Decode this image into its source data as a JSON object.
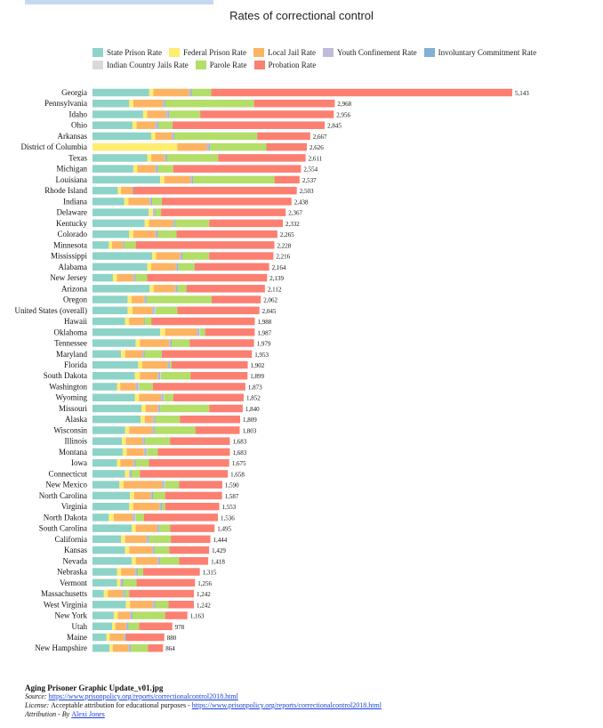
{
  "chart_data": {
    "type": "bar",
    "orientation": "horizontal",
    "stacked": true,
    "title": "Rates of correctional control",
    "legend_position": "top",
    "grid": false,
    "series": [
      {
        "name": "State Prison Rate",
        "color": "#8ed3c7"
      },
      {
        "name": "Federal Prison Rate",
        "color": "#ffed6f"
      },
      {
        "name": "Local Jail Rate",
        "color": "#fdb462"
      },
      {
        "name": "Youth Confinement Rate",
        "color": "#bebada"
      },
      {
        "name": "Involuntary Commitment Rate",
        "color": "#80b1d3"
      },
      {
        "name": "Indian Country Jails Rate",
        "color": "#d9d9d9"
      },
      {
        "name": "Parole Rate",
        "color": "#b3de69"
      },
      {
        "name": "Probation Rate",
        "color": "#fb8072"
      }
    ],
    "rows": [
      {
        "label": "Georgia",
        "total": 5143,
        "values": [
          695,
          50,
          440,
          20,
          10,
          0,
          240,
          3688
        ]
      },
      {
        "label": "Pennsylvania",
        "total": 2968,
        "values": [
          450,
          50,
          360,
          20,
          10,
          0,
          1090,
          988
        ]
      },
      {
        "label": "Idaho",
        "total": 2956,
        "values": [
          620,
          50,
          230,
          30,
          10,
          0,
          380,
          1636
        ]
      },
      {
        "label": "Ohio",
        "total": 2845,
        "values": [
          490,
          50,
          230,
          30,
          10,
          0,
          170,
          1865
        ]
      },
      {
        "label": "Arkansas",
        "total": 2667,
        "values": [
          720,
          50,
          200,
          20,
          10,
          0,
          1020,
          647
        ]
      },
      {
        "label": "District of Columbia",
        "total": 2626,
        "values": [
          0,
          1040,
          360,
          30,
          10,
          0,
          690,
          496
        ]
      },
      {
        "label": "Texas",
        "total": 2611,
        "values": [
          670,
          50,
          160,
          20,
          10,
          0,
          630,
          1071
        ]
      },
      {
        "label": "Michigan",
        "total": 2554,
        "values": [
          500,
          50,
          220,
          20,
          10,
          0,
          190,
          1564
        ]
      },
      {
        "label": "Louisiana",
        "total": 2537,
        "values": [
          830,
          50,
          320,
          20,
          10,
          0,
          1000,
          307
        ]
      },
      {
        "label": "Rhode Island",
        "total": 2503,
        "values": [
          310,
          40,
          140,
          0,
          10,
          0,
          0,
          2003
        ]
      },
      {
        "label": "Indiana",
        "total": 2438,
        "values": [
          390,
          50,
          260,
          20,
          10,
          0,
          120,
          1588
        ]
      },
      {
        "label": "Delaware",
        "total": 2367,
        "values": [
          690,
          50,
          0,
          20,
          10,
          0,
          70,
          1527
        ]
      },
      {
        "label": "Kentucky",
        "total": 2332,
        "values": [
          640,
          50,
          290,
          20,
          10,
          0,
          420,
          902
        ]
      },
      {
        "label": "Colorado",
        "total": 2265,
        "values": [
          450,
          50,
          270,
          20,
          10,
          0,
          230,
          1235
        ]
      },
      {
        "label": "Minnesota",
        "total": 2228,
        "values": [
          200,
          40,
          130,
          10,
          10,
          0,
          140,
          1698
        ]
      },
      {
        "label": "Mississippi",
        "total": 2216,
        "values": [
          730,
          50,
          290,
          20,
          10,
          0,
          330,
          786
        ]
      },
      {
        "label": "Alabama",
        "total": 2164,
        "values": [
          670,
          50,
          300,
          20,
          10,
          0,
          200,
          914
        ]
      },
      {
        "label": "New Jersey",
        "total": 2139,
        "values": [
          250,
          50,
          200,
          20,
          10,
          0,
          140,
          1469
        ]
      },
      {
        "label": "Arizona",
        "total": 2112,
        "values": [
          700,
          50,
          260,
          20,
          10,
          0,
          110,
          962
        ]
      },
      {
        "label": "Oregon",
        "total": 2062,
        "values": [
          430,
          50,
          150,
          20,
          10,
          0,
          800,
          602
        ]
      },
      {
        "label": "United States (overall)",
        "total": 2045,
        "values": [
          430,
          60,
          240,
          20,
          10,
          10,
          270,
          1005
        ]
      },
      {
        "label": "Hawaii",
        "total": 1988,
        "values": [
          400,
          50,
          180,
          0,
          10,
          0,
          80,
          1268
        ]
      },
      {
        "label": "Oklahoma",
        "total": 1987,
        "values": [
          830,
          60,
          390,
          20,
          10,
          10,
          60,
          607
        ]
      },
      {
        "label": "Tennessee",
        "total": 1979,
        "values": [
          530,
          50,
          360,
          20,
          10,
          0,
          220,
          789
        ]
      },
      {
        "label": "Maryland",
        "total": 1953,
        "values": [
          350,
          50,
          210,
          20,
          10,
          0,
          210,
          1103
        ]
      },
      {
        "label": "Florida",
        "total": 1902,
        "values": [
          560,
          50,
          310,
          20,
          10,
          0,
          20,
          932
        ]
      },
      {
        "label": "South Dakota",
        "total": 1899,
        "values": [
          520,
          60,
          220,
          20,
          10,
          10,
          360,
          699
        ]
      },
      {
        "label": "Washington",
        "total": 1873,
        "values": [
          300,
          40,
          190,
          20,
          10,
          10,
          170,
          1133
        ]
      },
      {
        "label": "Wyoming",
        "total": 1852,
        "values": [
          520,
          50,
          270,
          20,
          10,
          10,
          110,
          862
        ]
      },
      {
        "label": "Missouri",
        "total": 1840,
        "values": [
          600,
          50,
          150,
          20,
          10,
          0,
          600,
          410
        ]
      },
      {
        "label": "Alaska",
        "total": 1809,
        "values": [
          590,
          50,
          100,
          20,
          10,
          0,
          300,
          739
        ]
      },
      {
        "label": "Wisconsin",
        "total": 1803,
        "values": [
          400,
          50,
          280,
          20,
          10,
          0,
          500,
          543
        ]
      },
      {
        "label": "Illinois",
        "total": 1683,
        "values": [
          360,
          50,
          200,
          20,
          10,
          0,
          310,
          733
        ]
      },
      {
        "label": "Montana",
        "total": 1683,
        "values": [
          370,
          50,
          210,
          20,
          10,
          10,
          130,
          883
        ]
      },
      {
        "label": "Iowa",
        "total": 1675,
        "values": [
          300,
          40,
          160,
          20,
          10,
          0,
          160,
          985
        ]
      },
      {
        "label": "Connecticut",
        "total": 1658,
        "values": [
          400,
          50,
          0,
          20,
          10,
          0,
          100,
          1078
        ]
      },
      {
        "label": "New Mexico",
        "total": 1590,
        "values": [
          330,
          50,
          470,
          20,
          10,
          10,
          170,
          530
        ]
      },
      {
        "label": "North Carolina",
        "total": 1587,
        "values": [
          460,
          50,
          200,
          20,
          10,
          0,
          150,
          697
        ]
      },
      {
        "label": "Virginia",
        "total": 1553,
        "values": [
          450,
          50,
          320,
          20,
          10,
          0,
          40,
          663
        ]
      },
      {
        "label": "North Dakota",
        "total": 1536,
        "values": [
          200,
          60,
          230,
          20,
          10,
          10,
          100,
          906
        ]
      },
      {
        "label": "South Carolina",
        "total": 1495,
        "values": [
          480,
          50,
          260,
          20,
          10,
          0,
          130,
          545
        ]
      },
      {
        "label": "California",
        "total": 1444,
        "values": [
          350,
          50,
          260,
          20,
          10,
          0,
          270,
          484
        ]
      },
      {
        "label": "Kansas",
        "total": 1429,
        "values": [
          400,
          50,
          280,
          20,
          10,
          0,
          180,
          489
        ]
      },
      {
        "label": "Nevada",
        "total": 1418,
        "values": [
          480,
          50,
          270,
          20,
          10,
          0,
          230,
          358
        ]
      },
      {
        "label": "Nebraska",
        "total": 1315,
        "values": [
          300,
          50,
          170,
          20,
          10,
          0,
          70,
          695
        ]
      },
      {
        "label": "Vermont",
        "total": 1256,
        "values": [
          300,
          40,
          0,
          20,
          10,
          0,
          170,
          716
        ]
      },
      {
        "label": "Massachusetts",
        "total": 1242,
        "values": [
          140,
          50,
          180,
          20,
          10,
          0,
          50,
          792
        ]
      },
      {
        "label": "West Virginia",
        "total": 1242,
        "values": [
          410,
          50,
          280,
          20,
          10,
          0,
          160,
          312
        ]
      },
      {
        "label": "New York",
        "total": 1163,
        "values": [
          260,
          50,
          150,
          20,
          10,
          0,
          400,
          273
        ]
      },
      {
        "label": "Utah",
        "total": 978,
        "values": [
          240,
          40,
          130,
          20,
          10,
          0,
          130,
          408
        ]
      },
      {
        "label": "Maine",
        "total": 880,
        "values": [
          170,
          40,
          180,
          10,
          10,
          0,
          0,
          470
        ]
      },
      {
        "label": "New Hampshire",
        "total": 864,
        "values": [
          210,
          40,
          190,
          20,
          10,
          0,
          210,
          184
        ]
      }
    ]
  },
  "footer": {
    "filename": "Aging Prisoner Graphic Update_v01.jpg",
    "source_label": "Source: ",
    "source_url": "https://www.prisonpolicy.org/reports/correctionalcontrol2018.html",
    "license_label": "License: ",
    "license_text": "Acceptable attribution for educational purposes - ",
    "license_url": "https://www.prisonpolicy.org/reports/correctionalcontrol2018.html",
    "attribution_label": "Attribution - By ",
    "attribution_name": "Alexi Jones"
  }
}
